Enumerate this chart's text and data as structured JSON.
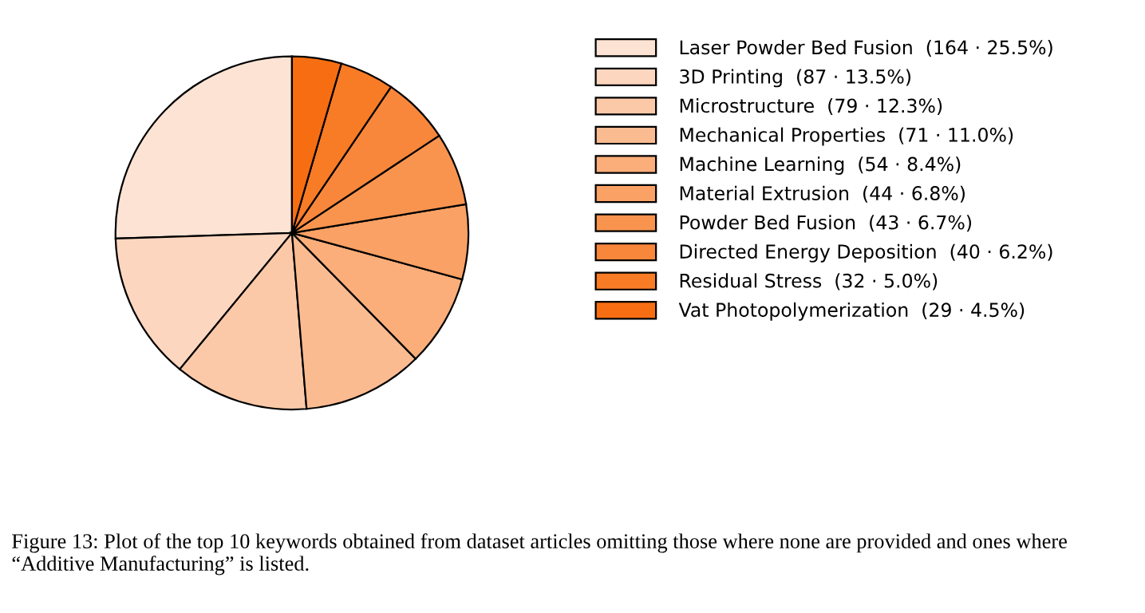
{
  "chart_data": {
    "type": "pie",
    "categories": [
      "Laser Powder Bed Fusion  (164 · 25.5%)",
      "3D Printing  (87 · 13.5%)",
      "Microstructure  (79 · 12.3%)",
      "Mechanical Properties  (71 · 11.0%)",
      "Machine Learning  (54 · 8.4%)",
      "Material Extrusion  (44 · 6.8%)",
      "Powder Bed Fusion  (43 · 6.7%)",
      "Directed Energy Deposition  (40 · 6.2%)",
      "Residual Stress  (32 · 5.0%)",
      "Vat Photopolymerization  (29 · 4.5%)"
    ],
    "values": [
      164,
      87,
      79,
      71,
      54,
      44,
      43,
      40,
      32,
      29
    ],
    "colors": [
      "#fde3d4",
      "#fdd6bf",
      "#fcc9a8",
      "#fbbb91",
      "#fbae7a",
      "#faa165",
      "#f9944f",
      "#f8873b",
      "#f87b26",
      "#f76e12"
    ],
    "legend": "right",
    "annotations": [
      "Figure 13: Plot of the top 10 keywords obtained from dataset articles omitting those where none are provided and ones where “Additive Manufacturing” is listed."
    ]
  }
}
